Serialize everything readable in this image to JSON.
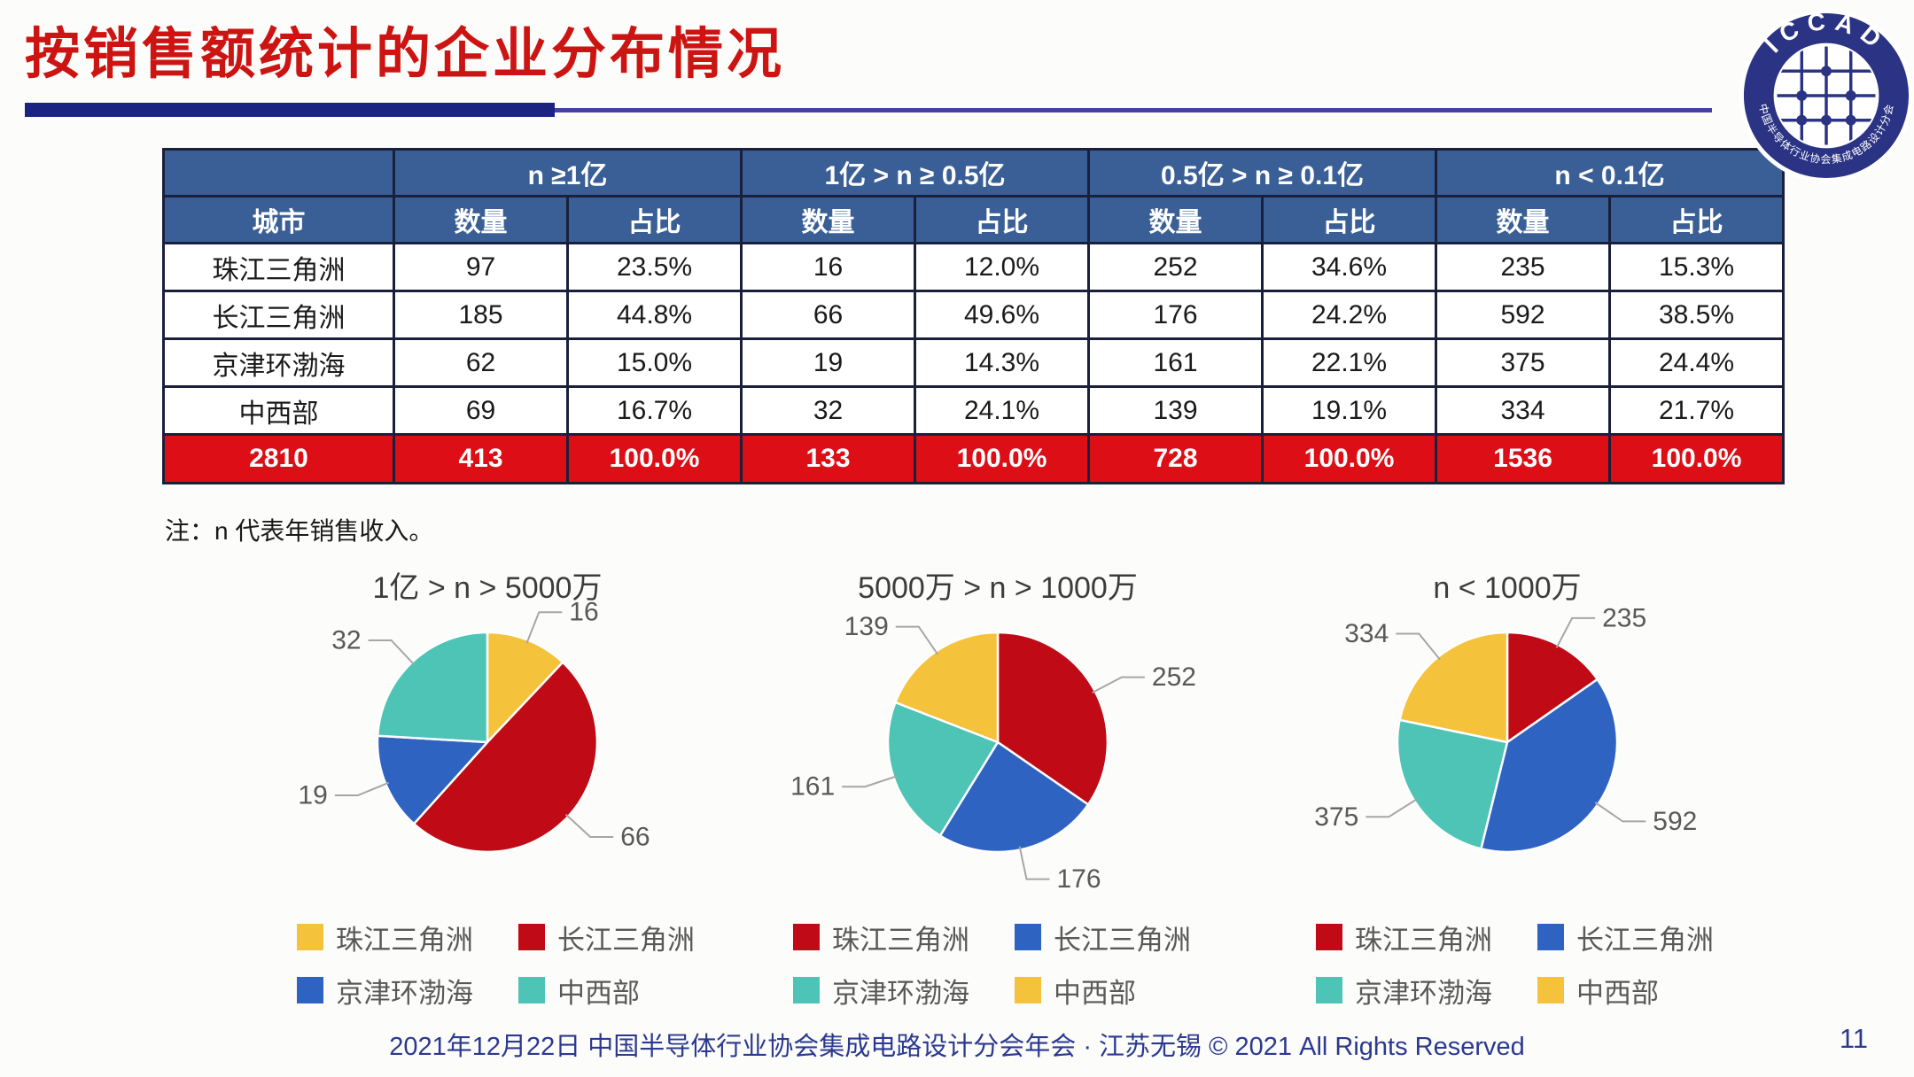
{
  "title": "按销售额统计的企业分布情况",
  "logo": {
    "top_text": "ICCAD",
    "bottom_text": "中国半导体行业协会集成电路设计分会"
  },
  "table": {
    "corner_label": "",
    "city_header": "城市",
    "col_groups": [
      "n ≥1亿",
      "1亿 > n ≥ 0.5亿",
      "0.5亿 > n ≥ 0.1亿",
      "n < 0.1亿"
    ],
    "sub_headers": [
      "数量",
      "占比"
    ],
    "rows": [
      {
        "city": "珠江三角洲",
        "cells": [
          "97",
          "23.5%",
          "16",
          "12.0%",
          "252",
          "34.6%",
          "235",
          "15.3%"
        ]
      },
      {
        "city": "长江三角洲",
        "cells": [
          "185",
          "44.8%",
          "66",
          "49.6%",
          "176",
          "24.2%",
          "592",
          "38.5%"
        ]
      },
      {
        "city": "京津环渤海",
        "cells": [
          "62",
          "15.0%",
          "19",
          "14.3%",
          "161",
          "22.1%",
          "375",
          "24.4%"
        ]
      },
      {
        "city": "中西部",
        "cells": [
          "69",
          "16.7%",
          "32",
          "24.1%",
          "139",
          "19.1%",
          "334",
          "21.7%"
        ]
      }
    ],
    "total_row": {
      "city": "2810",
      "cells": [
        "413",
        "100.0%",
        "133",
        "100.0%",
        "728",
        "100.0%",
        "1536",
        "100.0%"
      ]
    }
  },
  "note": "注：n 代表年销售收入。",
  "chart_data": [
    {
      "type": "pie",
      "title": "1亿 > n > 5000万",
      "categories": [
        "珠江三角洲",
        "长江三角洲",
        "京津环渤海",
        "中西部"
      ],
      "values": [
        16,
        66,
        19,
        32
      ],
      "colors": [
        "#F5C23C",
        "#C00A16",
        "#2E63C1",
        "#4DC4B5"
      ],
      "legend_position": "bottom",
      "label_type": "value",
      "start_angle_deg": 0,
      "direction": "clockwise"
    },
    {
      "type": "pie",
      "title": "5000万 > n > 1000万",
      "categories": [
        "珠江三角洲",
        "长江三角洲",
        "京津环渤海",
        "中西部"
      ],
      "values": [
        252,
        176,
        161,
        139
      ],
      "colors": [
        "#C00A16",
        "#2E63C1",
        "#4DC4B5",
        "#F5C23C"
      ],
      "legend_position": "bottom",
      "label_type": "value",
      "start_angle_deg": 0,
      "direction": "clockwise"
    },
    {
      "type": "pie",
      "title": "n < 1000万",
      "categories": [
        "珠江三角洲",
        "长江三角洲",
        "京津环渤海",
        "中西部"
      ],
      "values": [
        235,
        592,
        375,
        334
      ],
      "colors": [
        "#C00A16",
        "#2E63C1",
        "#4DC4B5",
        "#F5C23C"
      ],
      "legend_position": "bottom",
      "label_type": "value",
      "start_angle_deg": 0,
      "direction": "clockwise"
    }
  ],
  "footer": {
    "text": "2021年12月22日 中国半导体行业协会集成电路设计分会年会 · 江苏无锡 © 2021 All Rights Reserved",
    "page": "11"
  },
  "colors": {
    "title_red": "#CC1512",
    "header_blue": "#3A5F96",
    "total_row_red": "#DD0E15",
    "table_border_navy": "#1A1F3C",
    "footer_navy": "#2B3990",
    "rule_navy": "#1B2380",
    "label_gray": "#595959",
    "leader_gray": "#A6A6A6",
    "logo_navy": "#2A3384"
  }
}
